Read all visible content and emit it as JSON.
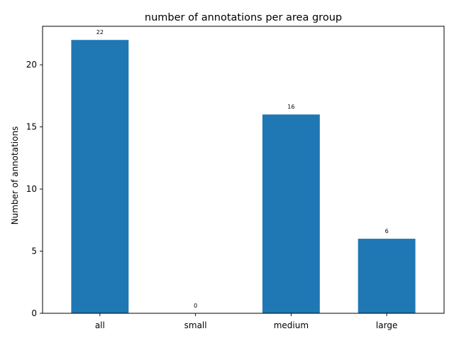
{
  "chart_data": {
    "type": "bar",
    "title": "number of annotations per area group",
    "xlabel": "",
    "ylabel": "Number of annotations",
    "categories": [
      "all",
      "small",
      "medium",
      "large"
    ],
    "values": [
      22,
      0,
      16,
      6
    ],
    "ylim": [
      0,
      23.1
    ],
    "yticks": [
      0,
      5,
      10,
      15,
      20
    ],
    "bar_color": "#1f77b4",
    "grid": false,
    "data_labels": true
  }
}
